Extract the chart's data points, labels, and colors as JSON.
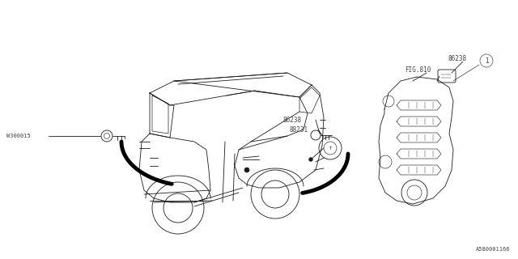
{
  "bg_color": "#ffffff",
  "line_color": "#1a1a1a",
  "label_color": "#444444",
  "thin_lw": 0.6,
  "thick_lw": 3.5,
  "fig_width": 6.4,
  "fig_height": 3.2,
  "dpi": 100,
  "diagram_id": "A580001166",
  "label_w300015": "W300015",
  "label_fig810": "FIG.810",
  "label_86238_top": "86238",
  "label_86238_mid": "86238",
  "label_88231": "88231",
  "label_1": "1"
}
